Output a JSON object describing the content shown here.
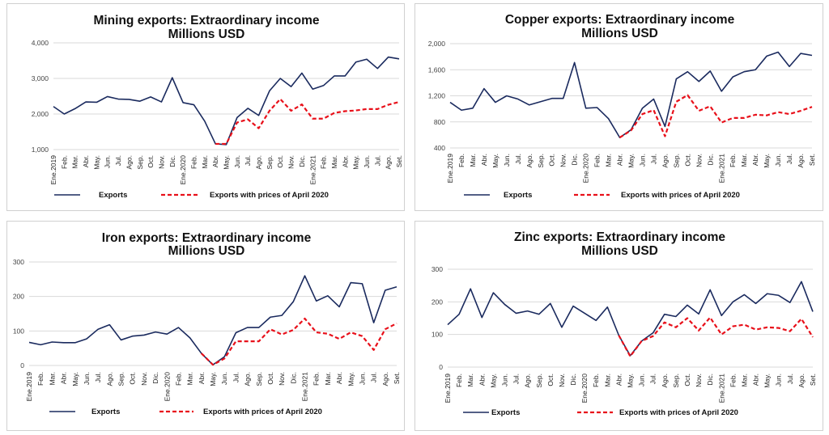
{
  "chart_data": [
    {
      "type": "line",
      "title": "Mining exports: Extraordinary income",
      "subtitle": "Millions USD",
      "categories": [
        "Ene.2019",
        "Feb.",
        "Mar.",
        "Abr.",
        "May.",
        "Jun.",
        "Jul.",
        "Ago.",
        "Sep.",
        "Oct.",
        "Nov.",
        "Dic.",
        "Ene.2020",
        "Feb.",
        "Mar.",
        "Abr.",
        "May.",
        "Jun.",
        "Jul.",
        "Ago.",
        "Sep.",
        "Oct.",
        "Nov.",
        "Dic.",
        "Ene.2021",
        "Feb.",
        "Mar.",
        "Abr.",
        "May.",
        "Jun.",
        "Jul.",
        "Ago.",
        "Set."
      ],
      "ylim": [
        1000,
        4000
      ],
      "yticks": [
        1000,
        2000,
        3000,
        4000
      ],
      "ytick_labels": [
        "1,000",
        "2,000",
        "3,000",
        "4,000"
      ],
      "grid": true,
      "legend_position": "bottom",
      "series": [
        {
          "name": "Exports",
          "color": "#1a2a5e",
          "style": "solid",
          "values": [
            2210,
            2000,
            2150,
            2340,
            2330,
            2490,
            2420,
            2410,
            2360,
            2480,
            2340,
            3020,
            2320,
            2260,
            1800,
            1160,
            1140,
            1900,
            2160,
            1960,
            2650,
            3000,
            2770,
            3150,
            2700,
            2800,
            3070,
            3070,
            3460,
            3540,
            3280,
            3600,
            3550
          ]
        },
        {
          "name": "Exports with prices of April 2020",
          "color": "#e8101a",
          "style": "dashed",
          "values": [
            null,
            null,
            null,
            null,
            null,
            null,
            null,
            null,
            null,
            null,
            null,
            null,
            null,
            null,
            null,
            1160,
            1160,
            1760,
            1850,
            1600,
            2090,
            2420,
            2090,
            2270,
            1870,
            1870,
            2030,
            2080,
            2100,
            2140,
            2140,
            2260,
            2340
          ]
        }
      ]
    },
    {
      "type": "line",
      "title": "Copper exports: Extraordinary income",
      "subtitle": "Millions USD",
      "categories": [
        "Ene.2019",
        "Feb.",
        "Mar.",
        "Abr.",
        "May.",
        "Jun.",
        "Jul.",
        "Ago.",
        "Sep.",
        "Oct.",
        "Nov.",
        "Dic.",
        "Ene.2020",
        "Feb.",
        "Mar.",
        "Abr.",
        "May.",
        "Jun.",
        "Jul.",
        "Ago.",
        "Sep.",
        "Oct.",
        "Nov.",
        "Dic.",
        "Ene.2021",
        "Feb.",
        "Mar.",
        "Abr.",
        "May.",
        "Jun.",
        "Jul.",
        "Ago.",
        "Set."
      ],
      "ylim": [
        400,
        2000
      ],
      "yticks": [
        400,
        800,
        1200,
        1600,
        2000
      ],
      "ytick_labels": [
        "400",
        "800",
        "1,200",
        "1,600",
        "2,000"
      ],
      "grid": true,
      "legend_position": "bottom",
      "series": [
        {
          "name": "Exports",
          "color": "#1a2a5e",
          "style": "solid",
          "values": [
            1100,
            980,
            1010,
            1310,
            1100,
            1200,
            1150,
            1060,
            1110,
            1160,
            1160,
            1710,
            1010,
            1020,
            850,
            560,
            680,
            1010,
            1150,
            730,
            1460,
            1570,
            1420,
            1580,
            1270,
            1490,
            1570,
            1600,
            1810,
            1870,
            1650,
            1850,
            1820
          ]
        },
        {
          "name": "Exports with prices of April 2020",
          "color": "#e8101a",
          "style": "dashed",
          "values": [
            null,
            null,
            null,
            null,
            null,
            null,
            null,
            null,
            null,
            null,
            null,
            null,
            null,
            null,
            null,
            560,
            670,
            920,
            980,
            580,
            1110,
            1210,
            970,
            1040,
            790,
            860,
            860,
            910,
            900,
            950,
            920,
            970,
            1030
          ]
        }
      ]
    },
    {
      "type": "line",
      "title": "Iron exports: Extraordinary income",
      "subtitle": "Millions USD",
      "categories": [
        "Ene.2019",
        "Feb.",
        "Mar.",
        "Abr.",
        "May.",
        "Jun.",
        "Jul.",
        "Ago.",
        "Sep.",
        "Oct.",
        "Nov.",
        "Dic.",
        "Ene.2020",
        "Feb.",
        "Mar.",
        "Abr.",
        "May.",
        "Jun.",
        "Jul.",
        "Ago.",
        "Sep.",
        "Oct.",
        "Nov.",
        "Dic.",
        "Ene.2021",
        "Feb.",
        "Mar.",
        "Abr.",
        "May.",
        "Jun.",
        "Jul.",
        "Ago.",
        "Set."
      ],
      "ylim": [
        0,
        300
      ],
      "yticks": [
        0,
        100,
        200,
        300
      ],
      "ytick_labels": [
        "0",
        "100",
        "200",
        "300"
      ],
      "grid": true,
      "legend_position": "bottom",
      "series": [
        {
          "name": "Exports",
          "color": "#1a2a5e",
          "style": "solid",
          "values": [
            67,
            60,
            68,
            66,
            66,
            77,
            105,
            118,
            74,
            85,
            88,
            97,
            91,
            110,
            80,
            35,
            2,
            25,
            95,
            110,
            110,
            140,
            145,
            185,
            260,
            187,
            202,
            170,
            240,
            237,
            124,
            218,
            228
          ]
        },
        {
          "name": "Exports with prices of April 2020",
          "color": "#e8101a",
          "style": "dashed",
          "values": [
            null,
            null,
            null,
            null,
            null,
            null,
            null,
            null,
            null,
            null,
            null,
            null,
            null,
            null,
            null,
            35,
            2,
            20,
            70,
            70,
            70,
            105,
            90,
            103,
            136,
            96,
            92,
            77,
            96,
            85,
            45,
            105,
            122
          ]
        }
      ]
    },
    {
      "type": "line",
      "title": "Zinc exports: Extraordinary income",
      "subtitle": "Millions USD",
      "categories": [
        "Ene.2019",
        "Feb.",
        "Mar.",
        "Abr.",
        "May.",
        "Jun.",
        "Jul.",
        "Ago.",
        "Sep.",
        "Oct.",
        "Nov.",
        "Dic.",
        "Ene.2020",
        "Feb.",
        "Mar.",
        "Abr.",
        "May.",
        "Jun.",
        "Jul.",
        "Ago.",
        "Sep.",
        "Oct.",
        "Nov.",
        "Dic.",
        "Ene.2021",
        "Feb.",
        "Mar.",
        "Abr.",
        "May.",
        "Jun.",
        "Jul.",
        "Ago.",
        "Set."
      ],
      "ylim": [
        0,
        300
      ],
      "yticks": [
        0,
        100,
        200,
        300
      ],
      "ytick_labels": [
        "0",
        "100",
        "200",
        "300"
      ],
      "grid": true,
      "legend_position": "bottom",
      "series": [
        {
          "name": "Exports",
          "color": "#1a2a5e",
          "style": "solid",
          "values": [
            130,
            162,
            240,
            152,
            228,
            192,
            165,
            172,
            162,
            195,
            122,
            187,
            165,
            143,
            184,
            97,
            35,
            80,
            105,
            162,
            155,
            190,
            163,
            237,
            158,
            200,
            222,
            195,
            225,
            220,
            198,
            262,
            170
          ]
        },
        {
          "name": "Exports with prices of April 2020",
          "color": "#e8101a",
          "style": "dashed",
          "values": [
            null,
            null,
            null,
            null,
            null,
            null,
            null,
            null,
            null,
            null,
            null,
            null,
            null,
            null,
            null,
            97,
            33,
            80,
            95,
            137,
            122,
            150,
            112,
            152,
            100,
            125,
            130,
            115,
            122,
            120,
            110,
            148,
            92
          ]
        }
      ]
    }
  ]
}
